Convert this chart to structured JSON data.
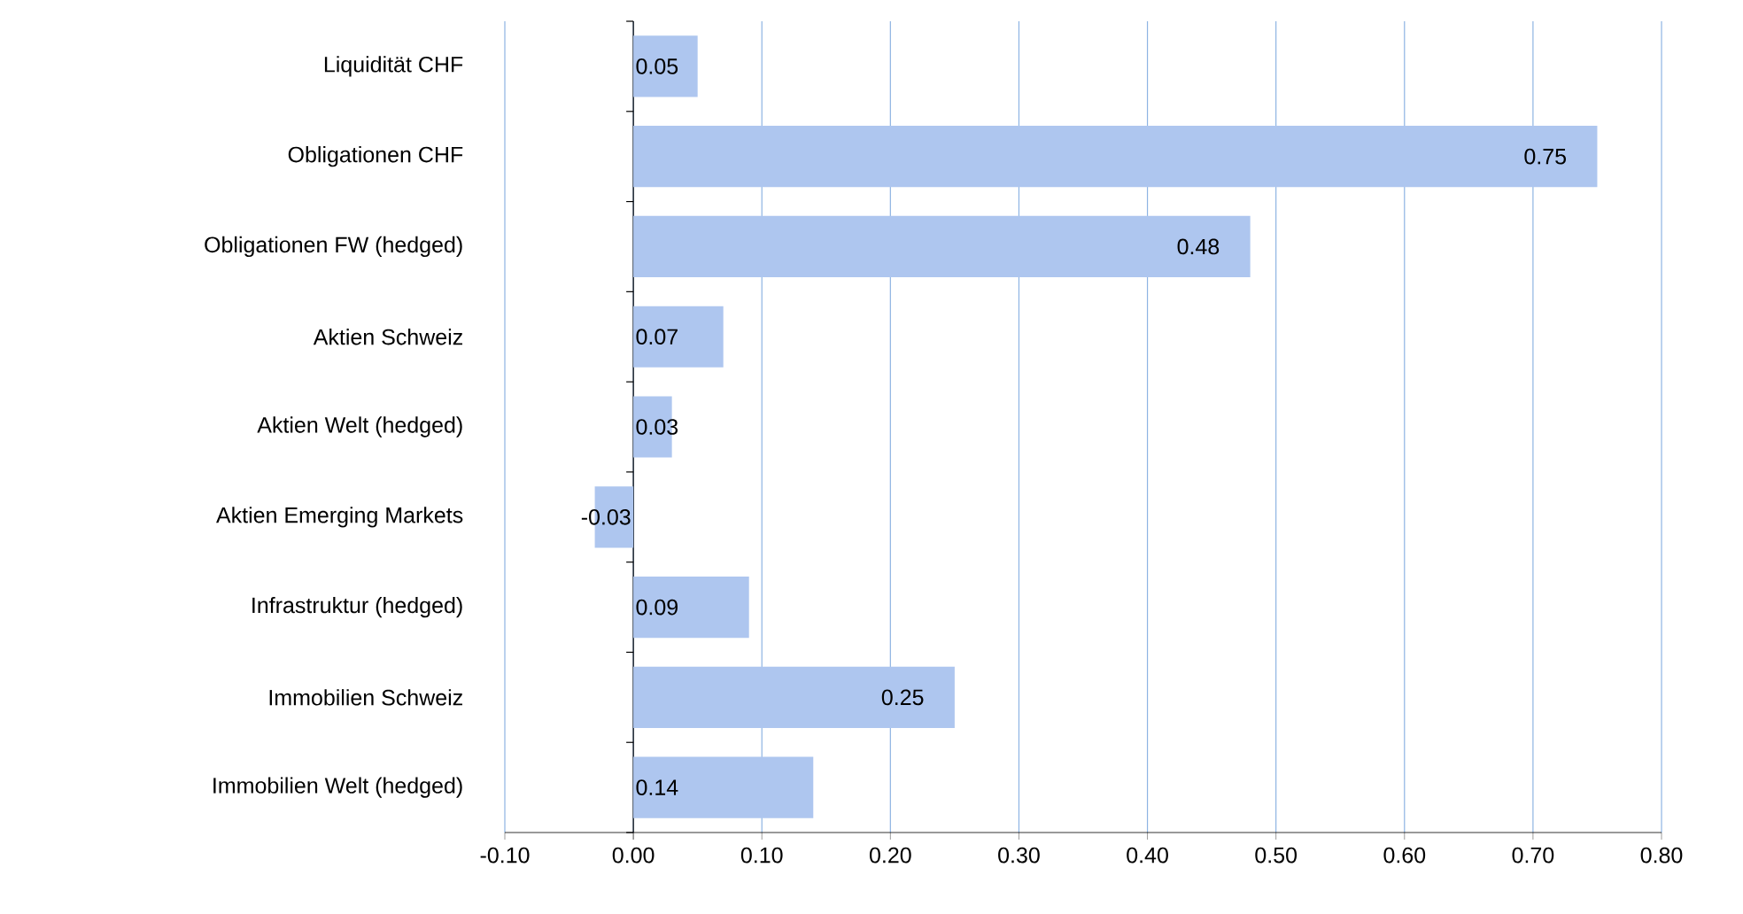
{
  "chart_data": {
    "type": "bar",
    "orientation": "horizontal",
    "categories": [
      "Liquidität CHF",
      "Obligationen CHF",
      "Obligationen FW (hedged)",
      "Aktien Schweiz",
      "Aktien Welt (hedged)",
      "Aktien Emerging Markets",
      "Infrastruktur (hedged)",
      "Immobilien Schweiz",
      "Immobilien Welt (hedged)"
    ],
    "values": [
      0.05,
      0.75,
      0.48,
      0.07,
      0.03,
      -0.03,
      0.09,
      0.25,
      0.14
    ],
    "value_labels": [
      "0.05",
      "0.75",
      "0.48",
      "0.07",
      "0.03",
      "-0.03",
      "0.09",
      "0.25",
      "0.14"
    ],
    "color": "#aec6ef",
    "xlim": [
      -0.1,
      0.8
    ],
    "xticks": [
      {
        "value": -0.1,
        "label": "-0.10"
      },
      {
        "value": 0,
        "label": "0.00"
      },
      {
        "value": 0.1,
        "label": "0.10"
      },
      {
        "value": 0.2,
        "label": "0.20"
      },
      {
        "value": 0.3,
        "label": "0.30"
      },
      {
        "value": 0.4,
        "label": "0.40"
      },
      {
        "value": 0.5,
        "label": "0.50"
      },
      {
        "value": 0.6,
        "label": "0.60"
      },
      {
        "value": 0.7,
        "label": "0.70"
      },
      {
        "value": 0.8,
        "label": "0.80"
      }
    ],
    "grid": "x"
  }
}
